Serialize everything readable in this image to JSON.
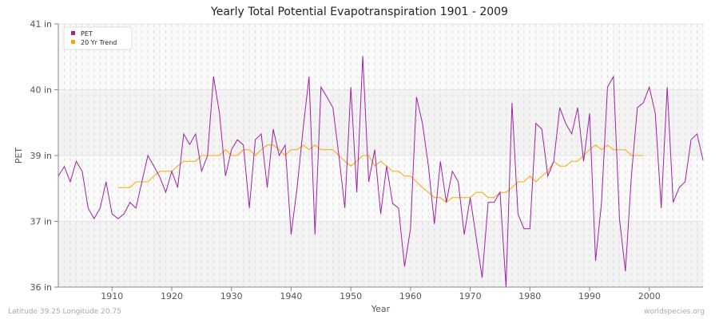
{
  "title": "Yearly Total Potential Evapotranspiration 1901 - 2009",
  "footer": {
    "location": "Latitude 39.25 Longitude 20.75",
    "site": "worldspecies.org"
  },
  "chart_data": {
    "type": "line",
    "title": "Yearly Total Potential Evapotranspiration 1901 - 2009",
    "xlabel": "Year",
    "ylabel": "PET",
    "xlim": [
      1901,
      2009
    ],
    "ylim": [
      36,
      41
    ],
    "x_ticks": [
      1910,
      1920,
      1930,
      1940,
      1950,
      1960,
      1970,
      1980,
      1990,
      2000
    ],
    "y_ticks": [
      {
        "value": 41,
        "label": "41 in"
      },
      {
        "value": 39.75,
        "label": "40 in"
      },
      {
        "value": 38.5,
        "label": "39 in"
      },
      {
        "value": 37.25,
        "label": "37 in"
      },
      {
        "value": 36,
        "label": "36 in"
      }
    ],
    "legend": "top-left",
    "grid": true,
    "series": [
      {
        "name": "PET",
        "color": "#a020a8",
        "x_start": 1901,
        "values": [
          38.11,
          38.29,
          38.0,
          38.39,
          38.2,
          37.5,
          37.3,
          37.5,
          38.0,
          37.39,
          37.3,
          37.39,
          37.61,
          37.5,
          38.0,
          38.5,
          38.3,
          38.09,
          37.8,
          38.2,
          37.89,
          38.91,
          38.71,
          38.91,
          38.2,
          38.5,
          40.0,
          39.3,
          38.11,
          38.61,
          38.8,
          38.7,
          37.5,
          38.8,
          38.91,
          37.89,
          39.0,
          38.5,
          38.7,
          37.0,
          37.89,
          39.0,
          40.0,
          37.0,
          39.8,
          39.61,
          39.41,
          38.5,
          37.5,
          39.8,
          37.8,
          40.39,
          38.0,
          38.61,
          37.39,
          38.3,
          37.59,
          37.5,
          36.39,
          37.11,
          39.61,
          39.11,
          38.3,
          37.2,
          38.39,
          37.61,
          38.2,
          38.0,
          37.0,
          37.7,
          36.94,
          36.18,
          37.61,
          37.61,
          37.8,
          36.0,
          39.5,
          37.39,
          37.11,
          37.11,
          39.11,
          39.0,
          38.11,
          38.39,
          39.41,
          39.11,
          38.91,
          39.41,
          38.39,
          39.3,
          36.5,
          37.61,
          39.8,
          40.0,
          37.3,
          36.3,
          38.11,
          39.41,
          39.5,
          39.8,
          39.3,
          37.5,
          39.8,
          37.61,
          37.89,
          38.0,
          38.8,
          38.91,
          38.41
        ]
      },
      {
        "name": "20 Yr Trend",
        "color": "#ffa500",
        "x_start": 1911,
        "values": [
          37.89,
          37.89,
          37.89,
          38.0,
          38.0,
          38.0,
          38.11,
          38.2,
          38.2,
          38.2,
          38.3,
          38.39,
          38.39,
          38.39,
          38.5,
          38.5,
          38.5,
          38.5,
          38.61,
          38.5,
          38.5,
          38.61,
          38.61,
          38.5,
          38.61,
          38.7,
          38.7,
          38.61,
          38.5,
          38.61,
          38.61,
          38.7,
          38.61,
          38.7,
          38.61,
          38.61,
          38.61,
          38.5,
          38.39,
          38.3,
          38.39,
          38.5,
          38.5,
          38.3,
          38.39,
          38.3,
          38.2,
          38.2,
          38.11,
          38.11,
          38.0,
          37.89,
          37.8,
          37.7,
          37.7,
          37.61,
          37.7,
          37.7,
          37.7,
          37.7,
          37.8,
          37.8,
          37.7,
          37.7,
          37.8,
          37.8,
          37.89,
          38.0,
          38.0,
          38.11,
          38.0,
          38.11,
          38.2,
          38.39,
          38.3,
          38.3,
          38.39,
          38.39,
          38.5,
          38.61,
          38.7,
          38.61,
          38.7,
          38.61,
          38.61,
          38.61,
          38.5,
          38.5,
          38.5
        ]
      }
    ]
  }
}
